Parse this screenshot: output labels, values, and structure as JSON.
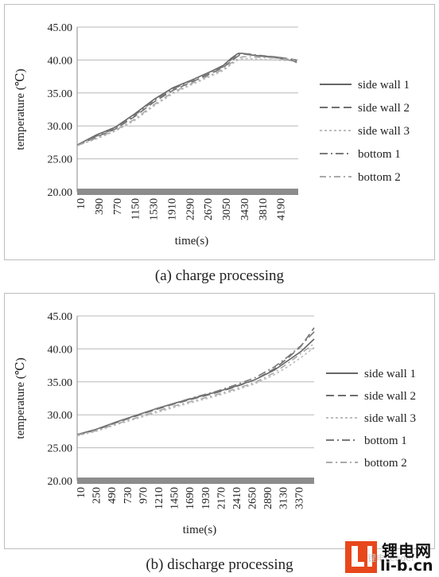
{
  "captions": [
    "(a) charge processing",
    "(b) discharge processing"
  ],
  "watermark": {
    "cn": "锂电网",
    "url": "li-b.cn",
    "faint": "锂电Leader"
  },
  "chart_data": [
    {
      "type": "line",
      "ylabel": "temperature (℃)",
      "xlabel": "time(s)",
      "ylim": [
        20,
        45
      ],
      "yticks": [
        "20.00",
        "25.00",
        "30.00",
        "35.00",
        "40.00",
        "45.00"
      ],
      "x_tick_labels": [
        "10",
        "390",
        "770",
        "1150",
        "1530",
        "1910",
        "2290",
        "2670",
        "3050",
        "3430",
        "3810",
        "4190"
      ],
      "xlim": [
        10,
        4600
      ],
      "grid": "horizontal",
      "legend_position": "right",
      "series": [
        {
          "name": "side wall 1",
          "color": "#666666",
          "dash": "",
          "x": [
            10,
            400,
            800,
            1200,
            1600,
            2000,
            2400,
            2800,
            3050,
            3200,
            3350,
            3450,
            3600,
            3800,
            4100,
            4400,
            4570
          ],
          "values": [
            27.1,
            28.6,
            29.8,
            31.8,
            34.0,
            35.8,
            37.0,
            38.3,
            39.2,
            40.2,
            41.0,
            41.0,
            40.8,
            40.6,
            40.4,
            40.0,
            39.8
          ]
        },
        {
          "name": "side wall 2",
          "color": "#707070",
          "dash": "10 5",
          "x": [
            10,
            400,
            800,
            1200,
            1600,
            2000,
            2400,
            2800,
            3050,
            3200,
            3350,
            3450,
            3600,
            3800,
            4100,
            4400,
            4570
          ],
          "values": [
            27.0,
            28.3,
            29.5,
            31.4,
            33.6,
            35.4,
            36.7,
            38.0,
            38.9,
            39.8,
            40.6,
            40.9,
            40.8,
            40.6,
            40.5,
            40.2,
            40.0
          ]
        },
        {
          "name": "side wall 3",
          "color": "#bdbdbd",
          "dash": "3 3",
          "x": [
            10,
            400,
            800,
            1200,
            1600,
            2000,
            2400,
            2800,
            3050,
            3200,
            3350,
            3450,
            3600,
            3800,
            4100,
            4400,
            4570
          ],
          "values": [
            27.0,
            28.0,
            29.2,
            30.8,
            33.0,
            34.9,
            36.3,
            37.6,
            38.4,
            39.3,
            40.0,
            40.2,
            40.2,
            40.1,
            40.0,
            39.9,
            39.9
          ]
        },
        {
          "name": "bottom 1",
          "color": "#7a7a7a",
          "dash": "10 4 2 4",
          "x": [
            10,
            400,
            800,
            1200,
            1600,
            2000,
            2400,
            2800,
            3050,
            3200,
            3350,
            3450,
            3600,
            3800,
            4100,
            4400,
            4570
          ],
          "values": [
            27.1,
            28.4,
            29.6,
            31.6,
            33.8,
            35.6,
            36.9,
            38.2,
            39.0,
            40.0,
            40.8,
            41.0,
            40.9,
            40.7,
            40.5,
            40.2,
            39.6
          ]
        },
        {
          "name": "bottom 2",
          "color": "#aaaaaa",
          "dash": "8 4 2 4",
          "x": [
            10,
            400,
            800,
            1200,
            1600,
            2000,
            2400,
            2800,
            3050,
            3200,
            3350,
            3450,
            3600,
            3800,
            4100,
            4400,
            4570
          ],
          "values": [
            27.0,
            28.1,
            29.3,
            31.0,
            33.2,
            35.1,
            36.5,
            37.8,
            38.6,
            39.5,
            40.2,
            40.5,
            40.5,
            40.4,
            40.3,
            40.1,
            40.0
          ]
        }
      ]
    },
    {
      "type": "line",
      "ylabel": "temperature (℃)",
      "xlabel": "time(s)",
      "ylim": [
        20,
        45
      ],
      "yticks": [
        "20.00",
        "25.00",
        "30.00",
        "35.00",
        "40.00",
        "45.00"
      ],
      "x_tick_labels": [
        "10",
        "250",
        "490",
        "730",
        "970",
        "1210",
        "1450",
        "1690",
        "1930",
        "2170",
        "2410",
        "2650",
        "2890",
        "3130",
        "3370"
      ],
      "xlim": [
        10,
        3600
      ],
      "grid": "horizontal",
      "legend_position": "right",
      "series": [
        {
          "name": "side wall 1",
          "color": "#666666",
          "dash": "",
          "x": [
            10,
            300,
            600,
            900,
            1200,
            1500,
            1800,
            2100,
            2400,
            2700,
            3000,
            3200,
            3400,
            3600
          ],
          "values": [
            27.0,
            27.8,
            28.9,
            29.9,
            30.9,
            31.8,
            32.6,
            33.4,
            34.3,
            35.3,
            36.8,
            38.2,
            39.6,
            41.5
          ]
        },
        {
          "name": "side wall 2",
          "color": "#707070",
          "dash": "10 5",
          "x": [
            10,
            300,
            600,
            900,
            1200,
            1500,
            1800,
            2100,
            2400,
            2700,
            3000,
            3200,
            3400,
            3600
          ],
          "values": [
            26.9,
            27.7,
            28.8,
            29.8,
            30.8,
            31.7,
            32.5,
            33.3,
            34.2,
            35.3,
            37.0,
            38.6,
            40.4,
            43.2
          ]
        },
        {
          "name": "side wall 3",
          "color": "#bdbdbd",
          "dash": "3 3",
          "x": [
            10,
            300,
            600,
            900,
            1200,
            1500,
            1800,
            2100,
            2400,
            2700,
            3000,
            3200,
            3400,
            3600
          ],
          "values": [
            26.8,
            27.5,
            28.5,
            29.4,
            30.3,
            31.2,
            32.0,
            32.8,
            33.7,
            34.7,
            36.1,
            37.3,
            38.7,
            40.2
          ]
        },
        {
          "name": "bottom 1",
          "color": "#7a7a7a",
          "dash": "10 4 2 4",
          "x": [
            10,
            300,
            600,
            900,
            1200,
            1500,
            1800,
            2100,
            2400,
            2700,
            3000,
            3200,
            3400,
            3600
          ],
          "values": [
            27.0,
            27.8,
            28.9,
            29.9,
            30.9,
            31.8,
            32.7,
            33.5,
            34.5,
            35.6,
            37.3,
            38.8,
            40.5,
            42.6
          ]
        },
        {
          "name": "bottom 2",
          "color": "#aaaaaa",
          "dash": "8 4 2 4",
          "x": [
            10,
            300,
            600,
            900,
            1200,
            1500,
            1800,
            2100,
            2400,
            2700,
            3000,
            3200,
            3400,
            3600
          ],
          "values": [
            26.9,
            27.6,
            28.6,
            29.5,
            30.5,
            31.4,
            32.2,
            33.0,
            33.9,
            34.9,
            36.4,
            37.8,
            39.3,
            40.8
          ]
        }
      ]
    }
  ]
}
